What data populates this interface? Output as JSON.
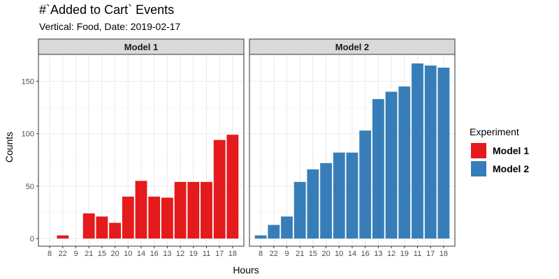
{
  "chart_data": {
    "type": "bar",
    "title": "#`Added to Cart` Events",
    "subtitle": "Vertical: Food, Date: 2019-02-17",
    "xlabel": "Hours",
    "ylabel": "Counts",
    "ylim": [
      0,
      175
    ],
    "yticks": [
      0,
      50,
      100,
      150
    ],
    "categories": [
      "8",
      "22",
      "9",
      "21",
      "15",
      "20",
      "10",
      "14",
      "16",
      "13",
      "12",
      "19",
      "11",
      "17",
      "18"
    ],
    "panels": [
      {
        "name": "Model 1",
        "color": "#E41A1C",
        "values": [
          0,
          3,
          0,
          24,
          21,
          15,
          40,
          55,
          40,
          39,
          54,
          54,
          54,
          94,
          99
        ]
      },
      {
        "name": "Model 2",
        "color": "#377EB8",
        "values": [
          3,
          13,
          21,
          54,
          66,
          72,
          82,
          82,
          103,
          133,
          140,
          145,
          167,
          165,
          163
        ]
      }
    ],
    "legend": {
      "title": "Experiment",
      "position": "right",
      "entries": [
        {
          "label": "Model 1",
          "color": "#E41A1C"
        },
        {
          "label": "Model 2",
          "color": "#377EB8"
        }
      ]
    }
  }
}
